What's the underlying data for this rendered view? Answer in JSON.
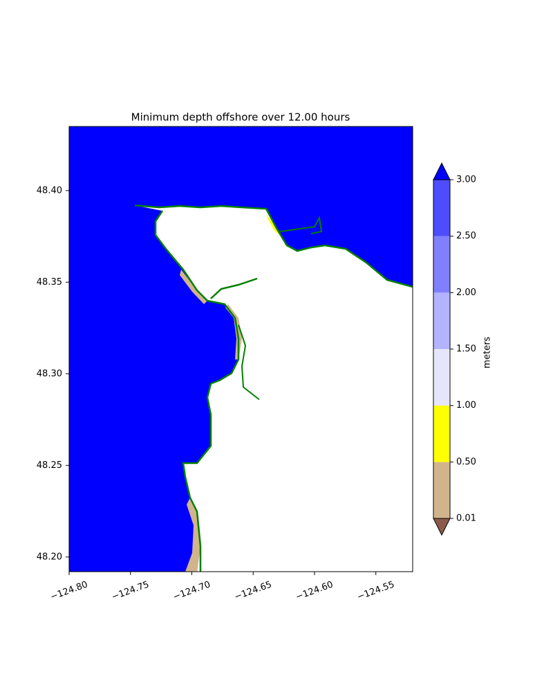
{
  "chart_data": {
    "type": "map",
    "title": "Minimum depth offshore over 12.00 hours",
    "xlim": [
      -124.8,
      -124.52
    ],
    "ylim": [
      48.192,
      48.435
    ],
    "xticks": [
      {
        "value": -124.8,
        "label": "−124.80"
      },
      {
        "value": -124.75,
        "label": "−124.75"
      },
      {
        "value": -124.7,
        "label": "−124.70"
      },
      {
        "value": -124.65,
        "label": "−124.65"
      },
      {
        "value": -124.6,
        "label": "−124.60"
      },
      {
        "value": -124.55,
        "label": "−124.55"
      }
    ],
    "yticks": [
      {
        "value": 48.2,
        "label": "48.20"
      },
      {
        "value": 48.25,
        "label": "48.25"
      },
      {
        "value": 48.3,
        "label": "48.30"
      },
      {
        "value": 48.35,
        "label": "48.35"
      },
      {
        "value": 48.4,
        "label": "48.40"
      }
    ],
    "water_color": "#0000ff",
    "coastline_color": "#008000",
    "colorbar": {
      "label": "meters",
      "levels": [
        {
          "value": 0.01,
          "label": "0.01"
        },
        {
          "value": 0.5,
          "label": "0.50"
        },
        {
          "value": 1,
          "label": "1.00"
        },
        {
          "value": 1.5,
          "label": "1.50"
        },
        {
          "value": 2,
          "label": "2.00"
        },
        {
          "value": 2.5,
          "label": "2.50"
        },
        {
          "value": 3,
          "label": "3.00"
        }
      ],
      "colors": [
        "#d2b48c",
        "#ffff00",
        "#e6e6fa",
        "#b3b3ff",
        "#8080ff",
        "#4d4dff"
      ],
      "under_color": "#8b5a4b",
      "over_color": "#0000ff"
    }
  }
}
